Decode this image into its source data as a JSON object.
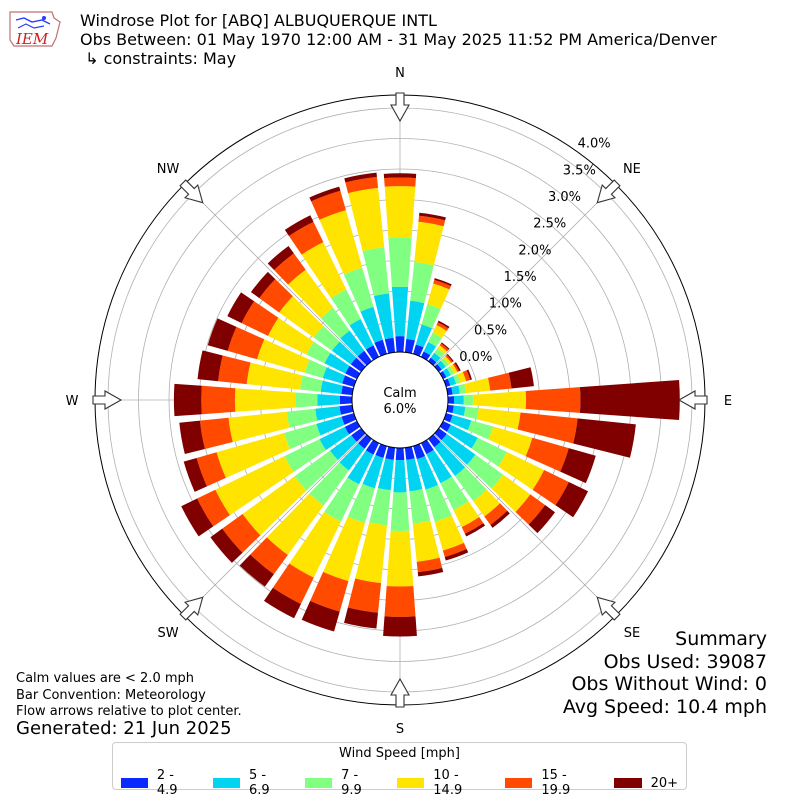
{
  "header": {
    "title_line1": "Windrose Plot for [ABQ] ALBUQUERQUE INTL",
    "title_line2": "Obs Between: 01 May 1970 12:00 AM - 31 May 2025 11:52 PM America/Denver",
    "title_line3": " ↳ constraints: May",
    "logo_text": "IEM"
  },
  "summary": {
    "heading": "Summary",
    "obs_used": "Obs Used: 39087",
    "obs_without_wind": "Obs Without Wind: 0",
    "avg_speed": "Avg Speed: 10.4 mph"
  },
  "notes": {
    "calm_note": "Calm values are < 2.0 mph",
    "bar_convention": "Bar Convention: Meteorology",
    "flow_arrows": "Flow arrows relative to plot center."
  },
  "generated": "Generated: 21 Jun 2025",
  "center": {
    "label": "Calm",
    "value": "6.0%"
  },
  "legend": {
    "title": "Wind Speed [mph]",
    "items": [
      {
        "label": "2 - 4.9",
        "color": "#0a2bff"
      },
      {
        "label": "5 - 6.9",
        "color": "#00d4f0"
      },
      {
        "label": "7 - 9.9",
        "color": "#80ff80"
      },
      {
        "label": "10 - 14.9",
        "color": "#ffe400"
      },
      {
        "label": "15 - 19.9",
        "color": "#ff4a00"
      },
      {
        "label": "20+",
        "color": "#800000"
      }
    ]
  },
  "chart_data": {
    "type": "windrose",
    "units": "%",
    "calm_percent": 6.0,
    "radial_tick_labels": [
      "0.0%",
      "0.5%",
      "1.0%",
      "1.5%",
      "2.0%",
      "2.5%",
      "3.0%",
      "3.5%",
      "4.0%"
    ],
    "radial_range": [
      0,
      4.0
    ],
    "compass_labels": [
      "N",
      "NE",
      "E",
      "SE",
      "S",
      "SW",
      "W",
      "NW"
    ],
    "speed_bins": [
      "2 - 4.9",
      "5 - 6.9",
      "7 - 9.9",
      "10 - 14.9",
      "15 - 19.9",
      "20+"
    ],
    "directions": [
      0,
      10,
      20,
      30,
      40,
      50,
      60,
      70,
      80,
      90,
      100,
      110,
      120,
      130,
      140,
      150,
      160,
      170,
      180,
      190,
      200,
      210,
      220,
      230,
      240,
      250,
      260,
      270,
      280,
      290,
      300,
      310,
      320,
      330,
      340,
      350
    ],
    "cumulative_percent": [
      [
        0.26,
        1.07,
        1.88,
        2.72,
        2.86,
        2.93
      ],
      [
        0.22,
        0.85,
        1.49,
        2.15,
        2.25,
        2.3
      ],
      [
        0.16,
        0.5,
        0.85,
        1.2,
        1.26,
        1.29
      ],
      [
        0.1,
        0.27,
        0.44,
        0.58,
        0.63,
        0.66
      ],
      [
        0.07,
        0.17,
        0.26,
        0.32,
        0.36,
        0.38
      ],
      [
        0.06,
        0.14,
        0.2,
        0.25,
        0.28,
        0.3
      ],
      [
        0.06,
        0.14,
        0.2,
        0.26,
        0.29,
        0.32
      ],
      [
        0.07,
        0.17,
        0.24,
        0.34,
        0.41,
        0.44
      ],
      [
        0.08,
        0.2,
        0.3,
        0.7,
        1.05,
        1.42
      ],
      [
        0.1,
        0.26,
        0.41,
        1.28,
        2.17,
        3.8
      ],
      [
        0.1,
        0.29,
        0.51,
        1.2,
        2.14,
        3.1
      ],
      [
        0.11,
        0.43,
        0.8,
        1.47,
        2.09,
        2.55
      ],
      [
        0.14,
        0.63,
        1.16,
        1.84,
        2.29,
        2.64
      ],
      [
        0.16,
        0.74,
        1.3,
        1.85,
        2.15,
        2.35
      ],
      [
        0.17,
        0.75,
        1.26,
        1.57,
        1.74,
        1.8
      ],
      [
        0.2,
        0.73,
        1.22,
        1.53,
        1.65,
        1.7
      ],
      [
        0.22,
        0.74,
        1.29,
        1.78,
        1.89,
        1.95
      ],
      [
        0.2,
        0.72,
        1.25,
        1.88,
        2.05,
        2.12
      ],
      [
        0.2,
        0.73,
        1.36,
        2.27,
        2.77,
        3.09
      ],
      [
        0.2,
        0.7,
        1.28,
        2.23,
        2.72,
        2.98
      ],
      [
        0.2,
        0.72,
        1.31,
        2.3,
        2.82,
        3.16
      ],
      [
        0.21,
        0.75,
        1.43,
        2.45,
        2.93,
        3.19
      ],
      [
        0.2,
        0.64,
        1.35,
        2.35,
        2.74,
        2.99
      ],
      [
        0.2,
        0.63,
        1.35,
        2.4,
        2.81,
        3.05
      ],
      [
        0.22,
        0.68,
        1.32,
        2.58,
        2.91,
        3.2
      ],
      [
        0.21,
        0.64,
        1.19,
        2.34,
        2.68,
        2.9
      ],
      [
        0.21,
        0.61,
        1.08,
        2.04,
        2.51,
        2.85
      ],
      [
        0.2,
        0.57,
        0.93,
        1.92,
        2.47,
        2.92
      ],
      [
        0.18,
        0.52,
        0.86,
        1.74,
        2.21,
        2.55
      ],
      [
        0.2,
        0.53,
        0.84,
        1.65,
        2.15,
        2.49
      ],
      [
        0.21,
        0.59,
        0.92,
        1.62,
        2.1,
        2.36
      ],
      [
        0.21,
        0.59,
        0.96,
        1.66,
        2.06,
        2.23
      ],
      [
        0.21,
        0.62,
        1.08,
        1.85,
        2.18,
        2.33
      ],
      [
        0.21,
        0.69,
        1.23,
        2.09,
        2.46,
        2.58
      ],
      [
        0.24,
        0.8,
        1.47,
        2.45,
        2.78,
        2.85
      ],
      [
        0.24,
        0.97,
        1.73,
        2.71,
        2.89,
        2.96
      ]
    ]
  }
}
